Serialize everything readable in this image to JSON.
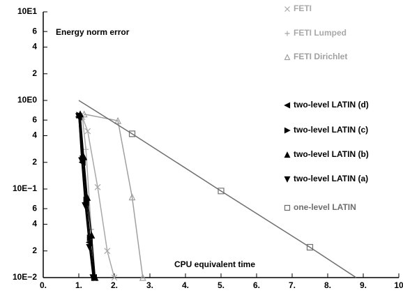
{
  "chart_data": {
    "type": "line",
    "annotations": [
      "Energy norm error",
      "CPU equivalent time"
    ],
    "log_y": true,
    "legend": "upper right",
    "xlim": [
      0,
      10
    ],
    "ylim": [
      0.01,
      10
    ],
    "xticks": [
      {
        "value": 0,
        "label": "0."
      },
      {
        "value": 1,
        "label": "1."
      },
      {
        "value": 2,
        "label": "2."
      },
      {
        "value": 3,
        "label": "3."
      },
      {
        "value": 4,
        "label": "4."
      },
      {
        "value": 5,
        "label": "5."
      },
      {
        "value": 6,
        "label": "6."
      },
      {
        "value": 7,
        "label": "7."
      },
      {
        "value": 8,
        "label": "8."
      },
      {
        "value": 9,
        "label": "9."
      },
      10
    ],
    "yticks": [
      {
        "value": 10,
        "label": "10E1"
      },
      6,
      4,
      2,
      {
        "value": 1,
        "label": "10E0"
      },
      {
        "value": 0.6,
        "label": "6"
      },
      {
        "value": 0.4,
        "label": "4"
      },
      {
        "value": 0.2,
        "label": "2"
      },
      {
        "value": 0.1,
        "label": "10E−1"
      },
      {
        "value": 0.06,
        "label": "6"
      },
      {
        "value": 0.04,
        "label": "4"
      },
      {
        "value": 0.02,
        "label": "2"
      },
      {
        "value": 0.01,
        "label": "10E−2"
      }
    ],
    "series": [
      {
        "name": "FETI",
        "color": "#a8a8a8",
        "marker": "x",
        "x": [
          1.1,
          1.25,
          1.53,
          1.8,
          2.0
        ],
        "values": [
          0.65,
          0.45,
          0.105,
          0.02,
          0.01
        ]
      },
      {
        "name": "FETI Lumped",
        "color": "#a8a8a8",
        "marker": "plus",
        "x": [
          1.1,
          1.2,
          1.35,
          1.45
        ],
        "values": [
          0.65,
          0.28,
          0.035,
          0.01
        ]
      },
      {
        "name": "FETI Dirichlet",
        "color": "#a0a0a0",
        "marker": "triangle-up-open",
        "x": [
          1.15,
          2.1,
          2.5,
          2.8
        ],
        "values": [
          0.7,
          0.59,
          0.081,
          0.01
        ]
      },
      {
        "name": "two-level LATIN (d)",
        "color": "#000000",
        "marker": "triangle-left",
        "x": [
          1.0,
          1.1,
          1.2,
          1.3,
          1.42
        ],
        "values": [
          0.65,
          0.2,
          0.07,
          0.025,
          0.01
        ]
      },
      {
        "name": "two-level LATIN (c)",
        "color": "#000000",
        "marker": "triangle-right",
        "x": [
          1.02,
          1.12,
          1.22,
          1.32,
          1.44
        ],
        "values": [
          0.68,
          0.22,
          0.075,
          0.028,
          0.01
        ]
      },
      {
        "name": "two-level LATIN (b)",
        "color": "#000000",
        "marker": "triangle-up",
        "x": [
          1.04,
          1.14,
          1.24,
          1.36,
          1.46
        ],
        "values": [
          0.7,
          0.23,
          0.08,
          0.03,
          0.01
        ]
      },
      {
        "name": "two-level LATIN (a)",
        "color": "#000000",
        "marker": "triangle-down",
        "x": [
          1.0,
          1.08,
          1.18,
          1.3,
          1.4
        ],
        "values": [
          0.66,
          0.21,
          0.065,
          0.022,
          0.01
        ]
      },
      {
        "name": "one-level LATIN",
        "color": "#6e6e6e",
        "marker": "square",
        "x": [
          1.0,
          2.5,
          5.0,
          7.5,
          8.8
        ],
        "values": [
          1.0,
          0.42,
          0.095,
          0.022,
          0.01
        ]
      }
    ]
  }
}
